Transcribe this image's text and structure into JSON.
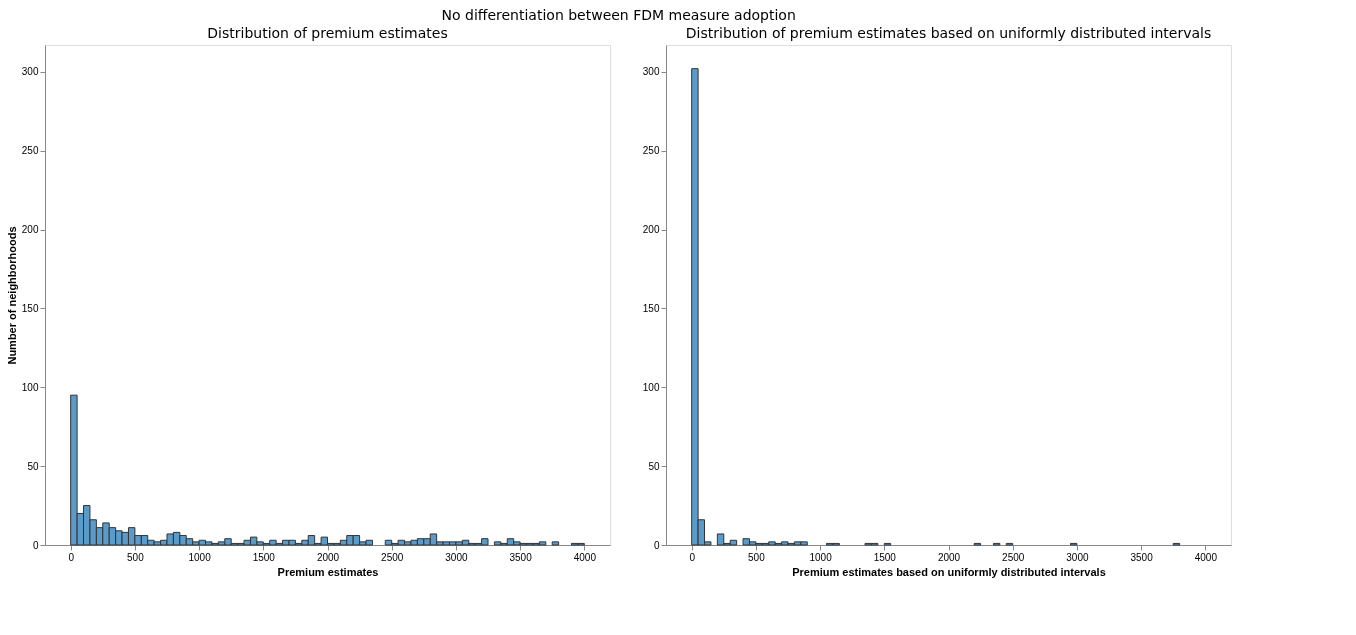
{
  "chart_data": [
    {
      "type": "histogram",
      "title": "No differentiation between FDM measure adoption",
      "subtitle": "Distribution of premium estimates",
      "xlabel": "Premium estimates",
      "ylabel": "Number of neighborhoods",
      "color": "#5b9bc9",
      "bins": [
        0,
        50,
        100,
        150,
        200,
        250,
        300,
        350,
        400,
        450,
        500,
        550,
        600,
        650,
        700,
        750,
        800,
        850,
        900,
        950,
        1000,
        1050,
        1100,
        1150,
        1200,
        1250,
        1300,
        1350,
        1400,
        1450,
        1500,
        1550,
        1600,
        1650,
        1700,
        1750,
        1800,
        1850,
        1900,
        1950,
        2000,
        2050,
        2100,
        2150,
        2200,
        2250,
        2300,
        2350,
        2400,
        2450,
        2500,
        2550,
        2600,
        2650,
        2700,
        2750,
        2800,
        2850,
        2900,
        2950,
        3000,
        3050,
        3100,
        3150,
        3200,
        3250,
        3300,
        3350,
        3400,
        3450,
        3500,
        3550,
        3600,
        3650,
        3700,
        3750,
        3800,
        3850,
        3900,
        3950,
        4000
      ],
      "values": [
        95,
        20,
        25,
        16,
        11,
        14,
        11,
        9,
        8,
        11,
        6,
        6,
        3,
        2,
        3,
        7,
        8,
        6,
        4,
        2,
        3,
        2,
        1,
        2,
        4,
        1,
        1,
        3,
        5,
        2,
        1,
        3,
        1,
        3,
        3,
        1,
        3,
        6,
        1,
        5,
        1,
        1,
        3,
        6,
        6,
        2,
        3,
        0,
        0,
        3,
        1,
        3,
        2,
        3,
        4,
        4,
        7,
        2,
        2,
        2,
        2,
        3,
        1,
        1,
        4,
        0,
        2,
        1,
        4,
        2,
        1,
        1,
        1,
        2,
        0,
        2,
        0,
        0,
        1,
        1
      ],
      "xlim": [
        -200,
        4200
      ],
      "xticks": [
        0,
        500,
        1000,
        1500,
        2000,
        2500,
        3000,
        3500,
        4000
      ],
      "ylim": [
        0,
        317
      ],
      "yticks": [
        0,
        50,
        100,
        150,
        200,
        250,
        300
      ],
      "grid": false
    },
    {
      "type": "histogram",
      "subtitle": "Distribution of premium estimates based on uniformly distributed intervals",
      "xlabel": "Premium estimates based on uniformly distributed intervals",
      "color": "#5b9bc9",
      "bins": [
        0,
        50,
        100,
        150,
        200,
        250,
        300,
        350,
        400,
        450,
        500,
        550,
        600,
        650,
        700,
        750,
        800,
        850,
        900,
        950,
        1000,
        1050,
        1100,
        1150,
        1200,
        1250,
        1300,
        1350,
        1400,
        1450,
        1500,
        1550,
        1600,
        1650,
        1700,
        1750,
        1800,
        1850,
        1900,
        1950,
        2000,
        2050,
        2100,
        2150,
        2200,
        2250,
        2300,
        2350,
        2400,
        2450,
        2500,
        2550,
        2600,
        2650,
        2700,
        2750,
        2800,
        2850,
        2900,
        2950,
        3000,
        3050,
        3100,
        3150,
        3200,
        3250,
        3300,
        3350,
        3400,
        3450,
        3500,
        3550,
        3600,
        3650,
        3700,
        3750,
        3800,
        3850,
        3900,
        3950,
        4000
      ],
      "values": [
        302,
        16,
        2,
        0,
        7,
        1,
        3,
        0,
        4,
        2,
        1,
        1,
        2,
        1,
        2,
        1,
        2,
        2,
        0,
        0,
        0,
        1,
        1,
        0,
        0,
        0,
        0,
        1,
        1,
        0,
        1,
        0,
        0,
        0,
        0,
        0,
        0,
        0,
        0,
        0,
        0,
        0,
        0,
        0,
        1,
        0,
        0,
        1,
        0,
        1,
        0,
        0,
        0,
        0,
        0,
        0,
        0,
        0,
        0,
        1,
        0,
        0,
        0,
        0,
        0,
        0,
        0,
        0,
        0,
        0,
        0,
        0,
        0,
        0,
        0,
        1,
        0,
        0,
        0,
        0
      ],
      "xlim": [
        -200,
        4200
      ],
      "xticks": [
        0,
        500,
        1000,
        1500,
        2000,
        2500,
        3000,
        3500,
        4000
      ],
      "ylim": [
        0,
        317
      ],
      "yticks": [
        0,
        50,
        100,
        150,
        200,
        250,
        300
      ],
      "grid": false
    }
  ]
}
